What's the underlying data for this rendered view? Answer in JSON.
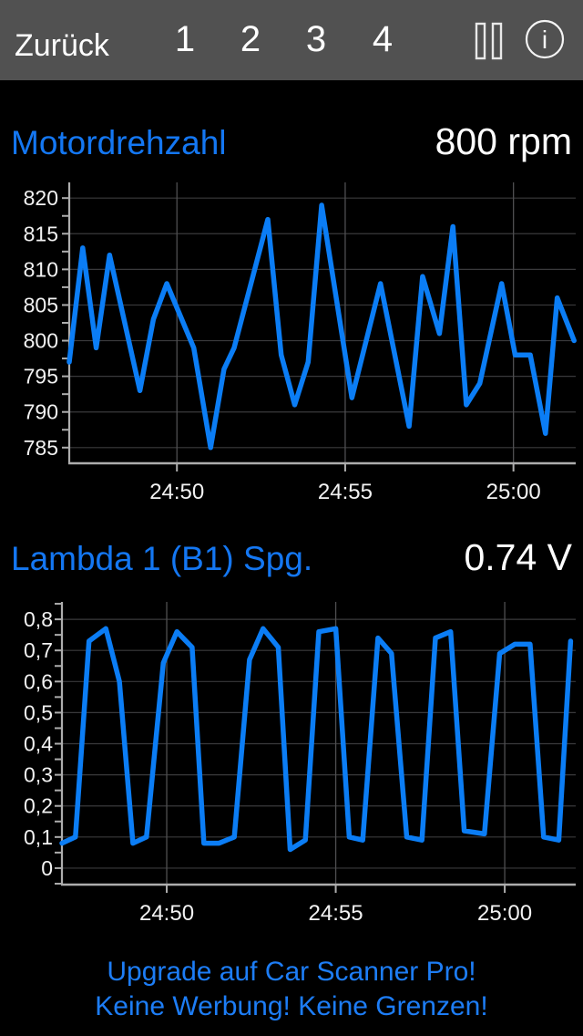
{
  "topbar": {
    "back_label": "Zurück",
    "pages": [
      "1",
      "2",
      "3",
      "4"
    ],
    "icons": [
      {
        "name": "pause-icon"
      },
      {
        "name": "info-icon",
        "glyph": "i"
      }
    ]
  },
  "colors": {
    "topbar_bg": "#515151",
    "background": "#000000",
    "accent_blue_title": "#1477f2",
    "accent_blue_line": "#0b7df5",
    "accent_blue_ad": "#1d7df6",
    "value_text": "#ffffff",
    "tick_label": "#f2f2f2",
    "axis": "#adadad",
    "grid_horizontal": "#3a3a3c",
    "grid_vertical": "#4f4f51"
  },
  "chart_data": [
    {
      "type": "line",
      "title": "Motordrehzahl",
      "value": "800 rpm",
      "unit": "rpm",
      "legend_position": "none",
      "grid": true,
      "ylim": [
        782.8,
        822.2
      ],
      "y_ticks": [
        {
          "v": 785,
          "label": "785"
        },
        {
          "v": 790,
          "label": "790"
        },
        {
          "v": 795,
          "label": "795"
        },
        {
          "v": 800,
          "label": "800"
        },
        {
          "v": 805,
          "label": "805"
        },
        {
          "v": 810,
          "label": "810"
        },
        {
          "v": 815,
          "label": "815"
        },
        {
          "v": 820,
          "label": "820"
        }
      ],
      "y_minor_step": 2.5,
      "xlim": [
        1486.8,
        1501.85
      ],
      "x_format": "mm:ss elapsed",
      "x_ticks": [
        {
          "t": 1490,
          "label": "24:50"
        },
        {
          "t": 1495,
          "label": "24:55"
        },
        {
          "t": 1500,
          "label": "25:00"
        }
      ],
      "points": [
        [
          1486.8,
          797
        ],
        [
          1487.2,
          813
        ],
        [
          1487.6,
          799
        ],
        [
          1488.0,
          812
        ],
        [
          1488.9,
          793
        ],
        [
          1489.3,
          803
        ],
        [
          1489.7,
          808
        ],
        [
          1490.5,
          799
        ],
        [
          1491.0,
          785
        ],
        [
          1491.4,
          796
        ],
        [
          1491.7,
          799
        ],
        [
          1492.7,
          817
        ],
        [
          1493.1,
          798
        ],
        [
          1493.5,
          791
        ],
        [
          1493.9,
          797
        ],
        [
          1494.3,
          819
        ],
        [
          1495.2,
          792
        ],
        [
          1496.05,
          808
        ],
        [
          1496.9,
          788
        ],
        [
          1497.3,
          809
        ],
        [
          1497.8,
          801
        ],
        [
          1498.2,
          816
        ],
        [
          1498.6,
          791
        ],
        [
          1499.0,
          794
        ],
        [
          1499.65,
          808
        ],
        [
          1500.05,
          798
        ],
        [
          1500.5,
          798
        ],
        [
          1500.95,
          787
        ],
        [
          1501.3,
          806
        ],
        [
          1501.8,
          800
        ]
      ]
    },
    {
      "type": "line",
      "title": "Lambda 1 (B1) Spg.",
      "value": "0.74 V",
      "unit": "V",
      "legend_position": "none",
      "grid": true,
      "ylim": [
        -0.053,
        0.856
      ],
      "y_ticks": [
        {
          "v": 0.0,
          "label": "0"
        },
        {
          "v": 0.1,
          "label": "0,1"
        },
        {
          "v": 0.2,
          "label": "0,2"
        },
        {
          "v": 0.3,
          "label": "0,3"
        },
        {
          "v": 0.4,
          "label": "0,4"
        },
        {
          "v": 0.5,
          "label": "0,5"
        },
        {
          "v": 0.6,
          "label": "0,6"
        },
        {
          "v": 0.7,
          "label": "0,7"
        },
        {
          "v": 0.8,
          "label": "0,8"
        }
      ],
      "y_minor_step": 0.05,
      "xlim": [
        1486.9,
        1502.1
      ],
      "x_format": "mm:ss elapsed",
      "x_ticks": [
        {
          "t": 1490,
          "label": "24:50"
        },
        {
          "t": 1495,
          "label": "24:55"
        },
        {
          "t": 1500,
          "label": "25:00"
        }
      ],
      "points": [
        [
          1486.9,
          0.08
        ],
        [
          1487.3,
          0.1
        ],
        [
          1487.7,
          0.73
        ],
        [
          1488.2,
          0.77
        ],
        [
          1488.6,
          0.6
        ],
        [
          1489.0,
          0.08
        ],
        [
          1489.4,
          0.1
        ],
        [
          1489.9,
          0.66
        ],
        [
          1490.3,
          0.76
        ],
        [
          1490.75,
          0.71
        ],
        [
          1491.1,
          0.08
        ],
        [
          1491.55,
          0.08
        ],
        [
          1492.0,
          0.1
        ],
        [
          1492.45,
          0.67
        ],
        [
          1492.85,
          0.77
        ],
        [
          1493.3,
          0.71
        ],
        [
          1493.65,
          0.06
        ],
        [
          1494.1,
          0.09
        ],
        [
          1494.5,
          0.76
        ],
        [
          1495.0,
          0.77
        ],
        [
          1495.4,
          0.1
        ],
        [
          1495.8,
          0.09
        ],
        [
          1496.25,
          0.74
        ],
        [
          1496.65,
          0.69
        ],
        [
          1497.1,
          0.1
        ],
        [
          1497.55,
          0.09
        ],
        [
          1497.95,
          0.74
        ],
        [
          1498.4,
          0.76
        ],
        [
          1498.8,
          0.12
        ],
        [
          1499.4,
          0.11
        ],
        [
          1499.85,
          0.69
        ],
        [
          1500.3,
          0.72
        ],
        [
          1500.75,
          0.72
        ],
        [
          1501.15,
          0.1
        ],
        [
          1501.6,
          0.09
        ],
        [
          1501.95,
          0.73
        ]
      ]
    }
  ],
  "ad": {
    "line1": "Upgrade auf Car Scanner Pro!",
    "line2": "Keine Werbung! Keine Grenzen!"
  }
}
